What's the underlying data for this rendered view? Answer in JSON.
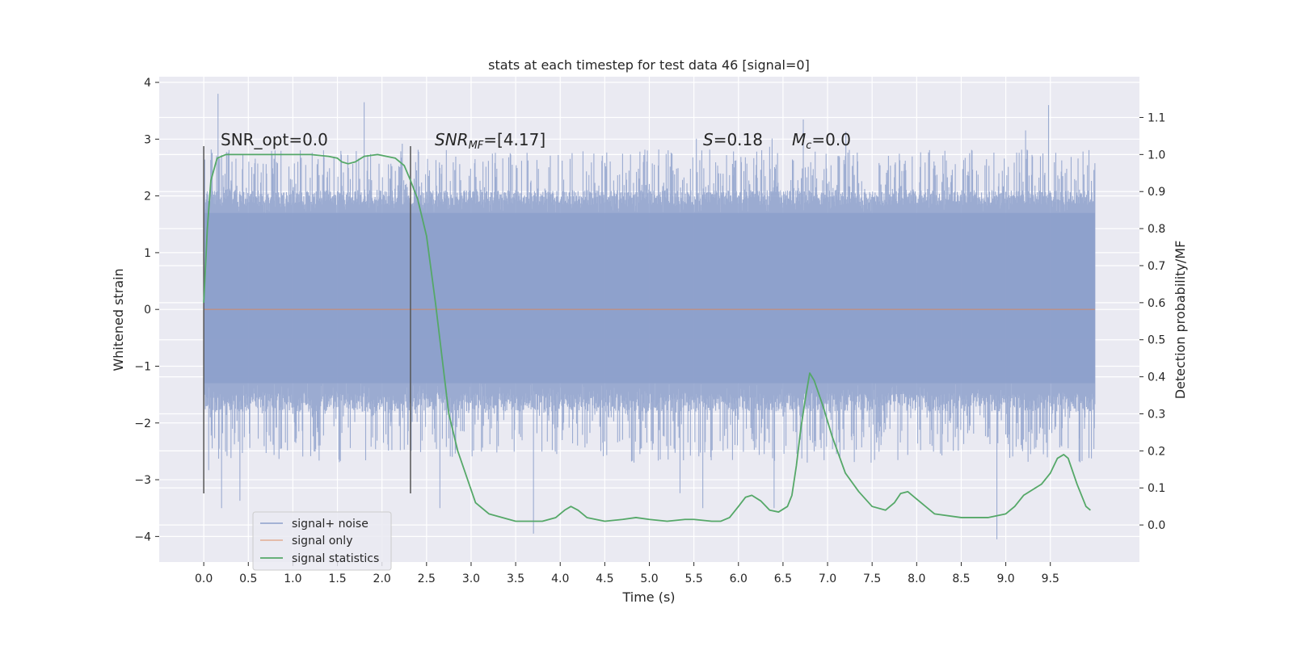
{
  "chart_data": {
    "type": "line",
    "title": "stats at each timestep for test data 46 [signal=0]",
    "xlabel": "Time (s)",
    "ylabel": "Whitened strain",
    "y2label": "Detection probability/MF",
    "xlim": [
      -0.5,
      10.5
    ],
    "ylim": [
      -4.45,
      4.1
    ],
    "y2lim": [
      -0.1,
      1.21
    ],
    "xticks": [
      "0.0",
      "0.5",
      "1.0",
      "1.5",
      "2.0",
      "2.5",
      "3.0",
      "3.5",
      "4.0",
      "4.5",
      "5.0",
      "5.5",
      "6.0",
      "6.5",
      "7.0",
      "7.5",
      "8.0",
      "8.5",
      "9.0",
      "9.5"
    ],
    "yticks": [
      "4",
      "3",
      "2",
      "1",
      "0",
      "−1",
      "−2",
      "−3",
      "−4"
    ],
    "y2ticks": [
      "1.1",
      "1.0",
      "0.9",
      "0.8",
      "0.7",
      "0.6",
      "0.5",
      "0.4",
      "0.3",
      "0.2",
      "0.1",
      "0.0"
    ],
    "grid": true,
    "legend_position": "lower-left",
    "annotations": {
      "snr_opt": "SNR_opt=0.0",
      "snr_mf_main": "SNR",
      "snr_mf_sub": "MF",
      "snr_mf_value": "=[4.17]",
      "s_symbol": "S",
      "s_value": "=0.18",
      "mc_main": "M",
      "mc_sub": "c",
      "mc_value": "=0.0"
    },
    "vlines": [
      0.0,
      2.32
    ],
    "colors": {
      "noise": "#8da0cb",
      "signal": "#dd8452",
      "stats": "#55a868",
      "background": "#eaeaf2",
      "vline": "#555555"
    },
    "series": [
      {
        "name": "signal+ noise",
        "kind": "strain",
        "x_range": [
          0,
          10
        ],
        "envelope_core": [
          -1.3,
          1.7
        ],
        "peaks": [
          [
            0.16,
            3.8
          ],
          [
            1.8,
            3.65
          ],
          [
            9.48,
            3.6
          ],
          [
            0.2,
            -3.5
          ],
          [
            2.65,
            -3.5
          ],
          [
            3.7,
            -3.95
          ],
          [
            8.9,
            -4.05
          ],
          [
            5.6,
            -3.5
          ],
          [
            6.4,
            -3.5
          ]
        ]
      },
      {
        "name": "signal only",
        "kind": "flat",
        "x": [
          0,
          10
        ],
        "y": [
          0,
          0
        ]
      },
      {
        "name": "signal statistics",
        "kind": "probability",
        "x": [
          0.0,
          0.04,
          0.08,
          0.15,
          0.25,
          0.4,
          0.6,
          0.9,
          1.2,
          1.4,
          1.5,
          1.55,
          1.62,
          1.7,
          1.8,
          1.95,
          2.05,
          2.15,
          2.25,
          2.32,
          2.4,
          2.5,
          2.6,
          2.7,
          2.75,
          2.85,
          2.95,
          3.05,
          3.2,
          3.5,
          3.8,
          3.95,
          4.05,
          4.12,
          4.2,
          4.3,
          4.5,
          4.7,
          4.85,
          5.0,
          5.2,
          5.4,
          5.5,
          5.7,
          5.8,
          5.9,
          6.0,
          6.08,
          6.15,
          6.25,
          6.35,
          6.45,
          6.55,
          6.6,
          6.65,
          6.7,
          6.75,
          6.8,
          6.85,
          6.95,
          7.05,
          7.2,
          7.35,
          7.5,
          7.65,
          7.75,
          7.82,
          7.9,
          8.0,
          8.2,
          8.5,
          8.8,
          9.0,
          9.1,
          9.2,
          9.3,
          9.4,
          9.5,
          9.58,
          9.65,
          9.7,
          9.8,
          9.9,
          9.95
        ],
        "y": [
          0.6,
          0.8,
          0.93,
          0.99,
          1.0,
          1.0,
          1.0,
          1.0,
          1.0,
          0.995,
          0.99,
          0.98,
          0.975,
          0.98,
          0.995,
          1.0,
          0.995,
          0.99,
          0.97,
          0.93,
          0.88,
          0.78,
          0.6,
          0.4,
          0.3,
          0.2,
          0.13,
          0.06,
          0.03,
          0.01,
          0.01,
          0.02,
          0.04,
          0.05,
          0.04,
          0.02,
          0.01,
          0.015,
          0.02,
          0.015,
          0.01,
          0.015,
          0.015,
          0.01,
          0.01,
          0.02,
          0.05,
          0.075,
          0.08,
          0.065,
          0.04,
          0.035,
          0.05,
          0.08,
          0.16,
          0.26,
          0.34,
          0.41,
          0.39,
          0.32,
          0.24,
          0.14,
          0.09,
          0.05,
          0.04,
          0.06,
          0.085,
          0.09,
          0.07,
          0.03,
          0.02,
          0.02,
          0.03,
          0.05,
          0.08,
          0.095,
          0.11,
          0.14,
          0.18,
          0.19,
          0.18,
          0.11,
          0.05,
          0.04
        ]
      }
    ]
  }
}
